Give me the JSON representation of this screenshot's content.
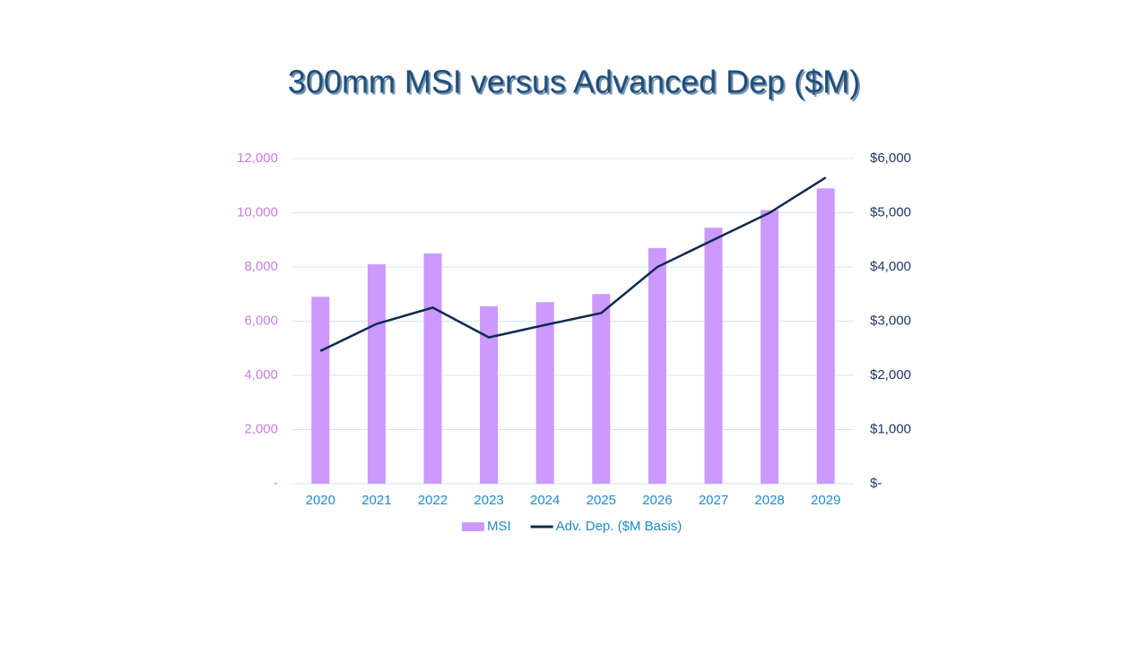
{
  "chart_data": {
    "type": "combo",
    "title": "300mm MSI versus Advanced Dep ($M)",
    "categories": [
      "2020",
      "2021",
      "2022",
      "2023",
      "2024",
      "2025",
      "2026",
      "2027",
      "2028",
      "2029"
    ],
    "series": [
      {
        "name": "MSI",
        "type": "bar",
        "color": "#cc99ff",
        "values": [
          6900,
          8100,
          8500,
          6550,
          6700,
          7000,
          8700,
          9450,
          10100,
          10900
        ]
      },
      {
        "name": "Adv. Dep. ($M Basis)",
        "type": "line",
        "axis": "y2",
        "color": "#0d2b4e",
        "values": [
          2450,
          2950,
          3250,
          2700,
          2930,
          3150,
          4000,
          4500,
          5000,
          5650
        ]
      }
    ],
    "ylim": [
      0,
      12000
    ],
    "yticks": [
      {
        "value": 0,
        "label": "-"
      },
      {
        "value": 2000,
        "label": "2,000"
      },
      {
        "value": 4000,
        "label": "4,000"
      },
      {
        "value": 6000,
        "label": "6,000"
      },
      {
        "value": 8000,
        "label": "8,000"
      },
      {
        "value": 10000,
        "label": "10,000"
      },
      {
        "value": 12000,
        "label": "12,000"
      }
    ],
    "y2lim": [
      0,
      6000
    ],
    "y2ticks": [
      {
        "value": 0,
        "label": "$-"
      },
      {
        "value": 1000,
        "label": "$1,000"
      },
      {
        "value": 2000,
        "label": "$2,000"
      },
      {
        "value": 3000,
        "label": "$3,000"
      },
      {
        "value": 4000,
        "label": "$4,000"
      },
      {
        "value": 5000,
        "label": "$5,000"
      },
      {
        "value": 6000,
        "label": "$6,000"
      }
    ],
    "grid": true,
    "legend": "bottom"
  }
}
